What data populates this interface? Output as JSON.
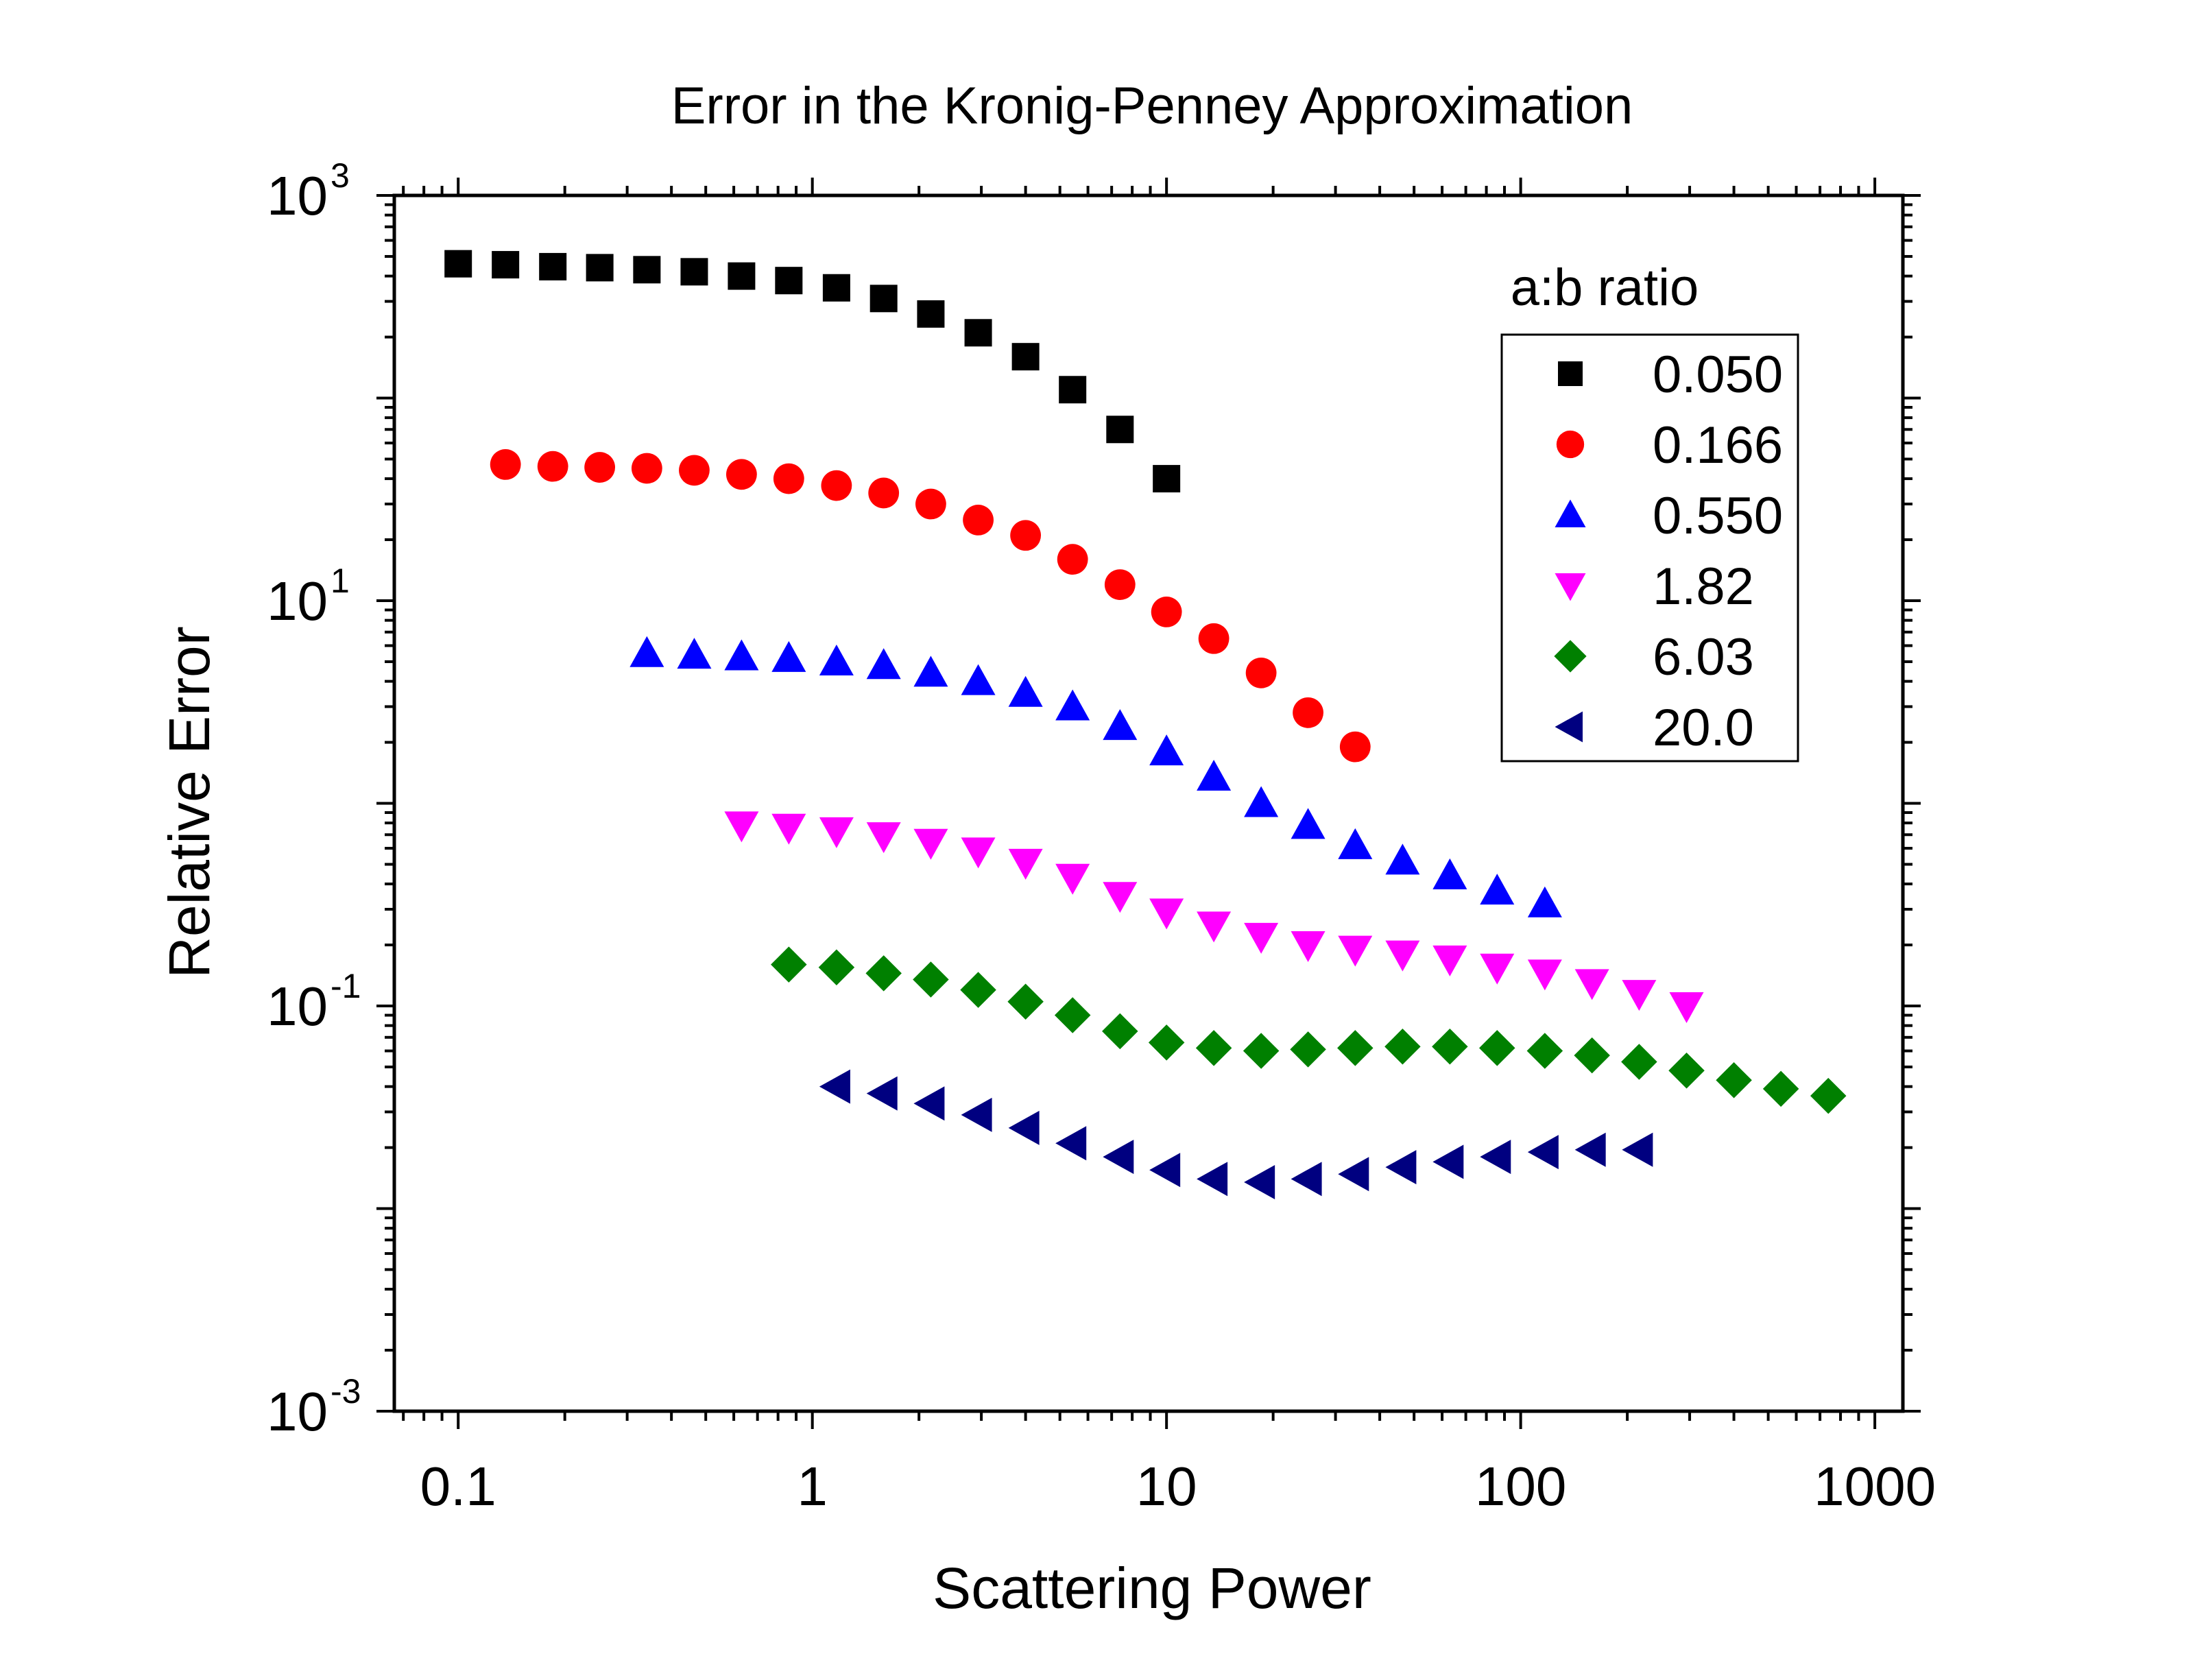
{
  "chart_data": {
    "type": "scatter",
    "title": "Error in the Kronig-Penney Approximation",
    "xlabel": "Scattering Power",
    "ylabel": "Relative Error",
    "xscale": "log",
    "yscale": "log",
    "xlim": [
      0.066,
      1200
    ],
    "ylim": [
      0.001,
      1000
    ],
    "x_ticks": [
      {
        "value": 0.1,
        "label": "0.1"
      },
      {
        "value": 1,
        "label": "1"
      },
      {
        "value": 10,
        "label": "10"
      },
      {
        "value": 100,
        "label": "100"
      },
      {
        "value": 1000,
        "label": "1000"
      }
    ],
    "y_ticks": [
      {
        "value": 1000,
        "base": "10",
        "exp": "3"
      },
      {
        "value": 10,
        "base": "10",
        "exp": "1"
      },
      {
        "value": 0.1,
        "base": "10",
        "exp": "-1"
      },
      {
        "value": 0.001,
        "base": "10",
        "exp": "-3"
      }
    ],
    "grid": false,
    "legend": {
      "title": "a:b ratio",
      "position": "top-right"
    },
    "series": [
      {
        "name": "0.050",
        "marker": "square",
        "color": "#000000",
        "x": [
          0.1,
          0.136,
          0.185,
          0.251,
          0.341,
          0.464,
          0.631,
          0.858,
          1.17,
          1.59,
          2.16,
          2.94,
          4.0,
          5.43,
          7.39,
          10.0
        ],
        "y": [
          460,
          455,
          445,
          440,
          430,
          420,
          400,
          380,
          350,
          310,
          260,
          210,
          160,
          110,
          70,
          40
        ]
      },
      {
        "name": "0.166",
        "marker": "circle",
        "color": "#ff0000",
        "x": [
          0.136,
          0.185,
          0.251,
          0.341,
          0.464,
          0.631,
          0.858,
          1.17,
          1.59,
          2.16,
          2.94,
          4.0,
          5.43,
          7.39,
          10.0,
          13.6,
          18.5,
          25.1,
          34.1
        ],
        "y": [
          47,
          46,
          45.5,
          45,
          44,
          42,
          40,
          37,
          34,
          30,
          25,
          21,
          16,
          12,
          8.8,
          6.5,
          4.4,
          2.8,
          1.9
        ]
      },
      {
        "name": "0.550",
        "marker": "triangle-up",
        "color": "#0000ff",
        "x": [
          0.341,
          0.464,
          0.631,
          0.858,
          1.17,
          1.59,
          2.16,
          2.94,
          4.0,
          5.43,
          7.39,
          10.0,
          13.6,
          18.5,
          25.1,
          34.1,
          46.4,
          63.1,
          85.8,
          117
        ],
        "y": [
          5.5,
          5.4,
          5.3,
          5.2,
          5.0,
          4.8,
          4.4,
          4.0,
          3.5,
          3.0,
          2.4,
          1.8,
          1.35,
          1.0,
          0.78,
          0.62,
          0.52,
          0.44,
          0.37,
          0.32
        ]
      },
      {
        "name": "1.82",
        "marker": "triangle-down",
        "color": "#ff00ff",
        "x": [
          0.631,
          0.858,
          1.17,
          1.59,
          2.16,
          2.94,
          4.0,
          5.43,
          7.39,
          10.0,
          13.6,
          18.5,
          25.1,
          34.1,
          46.4,
          63.1,
          85.8,
          117,
          159,
          216,
          294
        ],
        "y": [
          0.78,
          0.76,
          0.73,
          0.69,
          0.64,
          0.58,
          0.51,
          0.43,
          0.35,
          0.29,
          0.25,
          0.22,
          0.2,
          0.19,
          0.18,
          0.17,
          0.155,
          0.145,
          0.13,
          0.115,
          0.1
        ]
      },
      {
        "name": "6.03",
        "marker": "diamond",
        "color": "#008000",
        "x": [
          0.858,
          1.17,
          1.59,
          2.16,
          2.94,
          4.0,
          5.43,
          7.39,
          10.0,
          13.6,
          18.5,
          25.1,
          34.1,
          46.4,
          63.1,
          85.8,
          117,
          159,
          216,
          294,
          400,
          543,
          739
        ],
        "y": [
          0.16,
          0.155,
          0.145,
          0.135,
          0.12,
          0.105,
          0.09,
          0.075,
          0.066,
          0.062,
          0.06,
          0.061,
          0.062,
          0.063,
          0.063,
          0.062,
          0.06,
          0.057,
          0.053,
          0.048,
          0.043,
          0.039,
          0.036
        ]
      },
      {
        "name": "20.0",
        "marker": "triangle-left",
        "color": "#000080",
        "x": [
          1.17,
          1.59,
          2.16,
          2.94,
          4.0,
          5.43,
          7.39,
          10.0,
          13.6,
          18.5,
          25.1,
          34.1,
          46.4,
          63.1,
          85.8,
          117,
          159,
          216
        ],
        "y": [
          0.04,
          0.037,
          0.033,
          0.029,
          0.025,
          0.021,
          0.018,
          0.0155,
          0.014,
          0.0135,
          0.014,
          0.0148,
          0.016,
          0.017,
          0.018,
          0.019,
          0.0195,
          0.0195
        ]
      }
    ]
  }
}
